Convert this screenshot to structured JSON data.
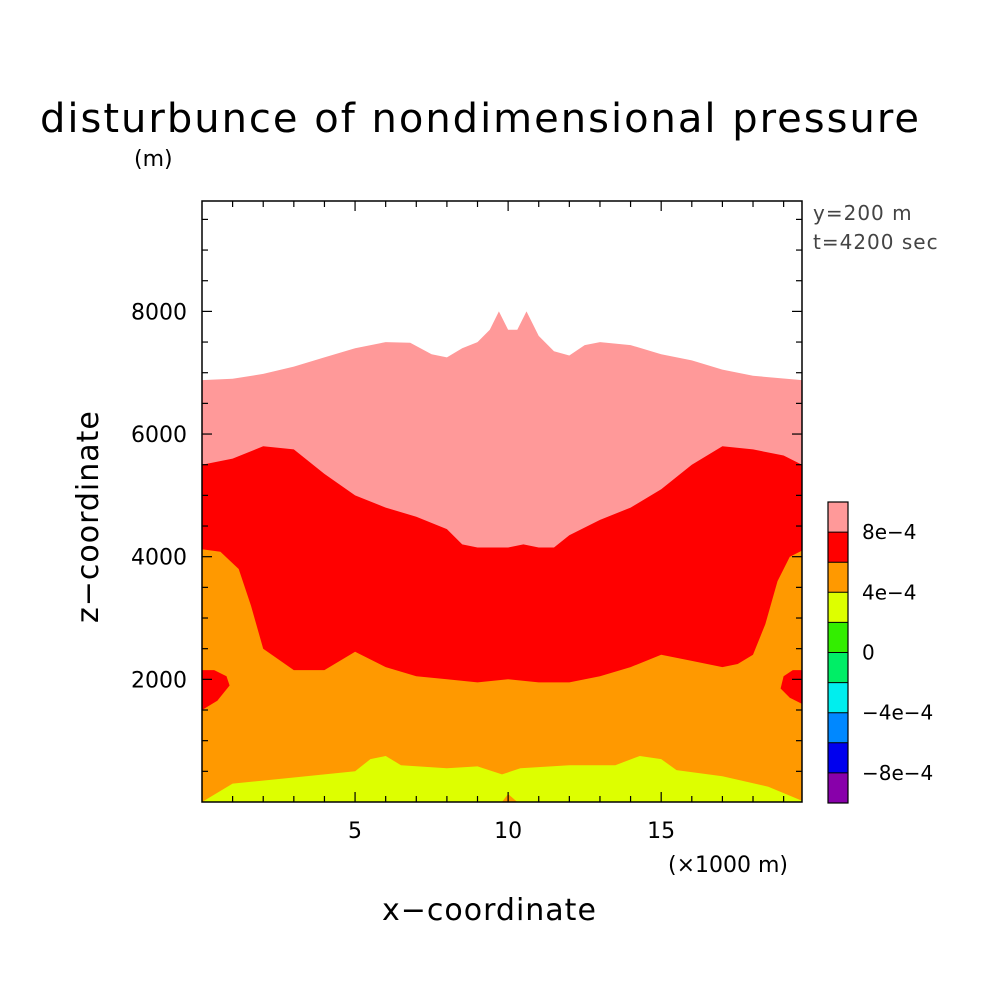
{
  "chart_data": {
    "type": "contour",
    "title": "disturbunce of nondimensional pressure",
    "ylabel": "z−coordinate",
    "yunit": "(m)",
    "xlabel": "x−coordinate",
    "xunit": "(×1000 m)",
    "info": [
      "y=200 m",
      "t=4200 sec"
    ],
    "xlim": [
      0,
      19.6
    ],
    "ylim": [
      0,
      9800
    ],
    "xticks": [
      5,
      10,
      15
    ],
    "xtick_labels": [
      "5",
      "10",
      "15"
    ],
    "yticks": [
      2000,
      4000,
      6000,
      8000
    ],
    "ytick_labels": [
      "2000",
      "4000",
      "6000",
      "8000"
    ],
    "background_color": "#ffffff",
    "levels": [
      {
        "min": 0.0008,
        "max": 0.001,
        "color": "#ff9999"
      },
      {
        "min": 0.0006,
        "max": 0.0008,
        "color": "#ff0000"
      },
      {
        "min": 0.0004,
        "max": 0.0006,
        "color": "#ff9900"
      },
      {
        "min": 0.0002,
        "max": 0.0004,
        "color": "#ddff00"
      },
      {
        "min": 0.0,
        "max": 0.0002,
        "color": "#33ee00"
      },
      {
        "min": -0.0002,
        "max": 0.0,
        "color": "#00ee66"
      },
      {
        "min": -0.0004,
        "max": -0.0002,
        "color": "#00eeee"
      },
      {
        "min": -0.0006,
        "max": -0.0004,
        "color": "#0088ff"
      },
      {
        "min": -0.0008,
        "max": -0.0006,
        "color": "#0000ee"
      },
      {
        "min": -0.001,
        "max": -0.0008,
        "color": "#8800aa"
      }
    ],
    "colorbar_labels": [
      {
        "value": 0.0008,
        "text": "8e−4"
      },
      {
        "value": 0.0004,
        "text": "4e−4"
      },
      {
        "value": 0,
        "text": "0"
      },
      {
        "value": -0.0004,
        "text": "−4e−4"
      },
      {
        "value": -0.0008,
        "text": "−8e−4"
      }
    ],
    "regions": [
      {
        "level_color": "#ff9999",
        "points": [
          [
            0,
            0
          ],
          [
            0,
            6880
          ],
          [
            1,
            6900
          ],
          [
            2,
            6980
          ],
          [
            3,
            7100
          ],
          [
            4,
            7250
          ],
          [
            5,
            7400
          ],
          [
            6,
            7500
          ],
          [
            6.8,
            7490
          ],
          [
            7.5,
            7300
          ],
          [
            8,
            7250
          ],
          [
            8.5,
            7400
          ],
          [
            9,
            7500
          ],
          [
            9.4,
            7700
          ],
          [
            9.7,
            8000
          ],
          [
            10,
            7700
          ],
          [
            10.3,
            7700
          ],
          [
            10.6,
            8000
          ],
          [
            11,
            7600
          ],
          [
            11.5,
            7350
          ],
          [
            12,
            7280
          ],
          [
            12.5,
            7450
          ],
          [
            13,
            7500
          ],
          [
            14,
            7450
          ],
          [
            15,
            7300
          ],
          [
            16,
            7200
          ],
          [
            17,
            7050
          ],
          [
            18,
            6950
          ],
          [
            19.6,
            6880
          ],
          [
            19.6,
            0
          ]
        ]
      },
      {
        "level_color": "#ff0000",
        "points": [
          [
            0,
            0
          ],
          [
            0,
            5500
          ],
          [
            1,
            5600
          ],
          [
            2,
            5800
          ],
          [
            3,
            5750
          ],
          [
            4,
            5350
          ],
          [
            5,
            5000
          ],
          [
            6,
            4800
          ],
          [
            7,
            4650
          ],
          [
            8,
            4450
          ],
          [
            8.5,
            4200
          ],
          [
            9,
            4150
          ],
          [
            10,
            4150
          ],
          [
            10.5,
            4200
          ],
          [
            11,
            4150
          ],
          [
            11.5,
            4150
          ],
          [
            12,
            4350
          ],
          [
            13,
            4600
          ],
          [
            14,
            4800
          ],
          [
            15,
            5100
          ],
          [
            16,
            5500
          ],
          [
            17,
            5800
          ],
          [
            18,
            5750
          ],
          [
            19,
            5650
          ],
          [
            19.6,
            5500
          ],
          [
            19.6,
            0
          ]
        ]
      },
      {
        "level_color": "#ff9900",
        "points": [
          [
            0,
            0
          ],
          [
            0,
            4120
          ],
          [
            0.6,
            4080
          ],
          [
            1.2,
            3800
          ],
          [
            1.6,
            3200
          ],
          [
            2,
            2500
          ],
          [
            3,
            2150
          ],
          [
            4,
            2150
          ],
          [
            5,
            2450
          ],
          [
            6,
            2200
          ],
          [
            7,
            2050
          ],
          [
            8,
            2000
          ],
          [
            9,
            1950
          ],
          [
            10,
            2000
          ],
          [
            11,
            1950
          ],
          [
            12,
            1950
          ],
          [
            13,
            2050
          ],
          [
            14,
            2200
          ],
          [
            15,
            2400
          ],
          [
            16,
            2300
          ],
          [
            17,
            2200
          ],
          [
            17.5,
            2250
          ],
          [
            18,
            2400
          ],
          [
            18.4,
            2900
          ],
          [
            18.8,
            3600
          ],
          [
            19.2,
            4000
          ],
          [
            19.6,
            4100
          ],
          [
            19.6,
            0
          ]
        ]
      },
      {
        "level_color": "#ff0000",
        "points": [
          [
            0,
            1500
          ],
          [
            0.5,
            1650
          ],
          [
            0.9,
            1900
          ],
          [
            0.8,
            2050
          ],
          [
            0.4,
            2150
          ],
          [
            0,
            2150
          ]
        ]
      },
      {
        "level_color": "#ff0000",
        "points": [
          [
            19.6,
            1600
          ],
          [
            19.2,
            1700
          ],
          [
            18.9,
            1850
          ],
          [
            19,
            2050
          ],
          [
            19.3,
            2150
          ],
          [
            19.6,
            2150
          ]
        ]
      },
      {
        "level_color": "#ddff00",
        "points": [
          [
            0,
            0
          ],
          [
            1,
            300
          ],
          [
            3,
            400
          ],
          [
            5,
            500
          ],
          [
            5.5,
            700
          ],
          [
            6,
            750
          ],
          [
            6.5,
            600
          ],
          [
            8,
            550
          ],
          [
            9,
            580
          ],
          [
            9.8,
            450
          ],
          [
            10.4,
            550
          ],
          [
            12,
            600
          ],
          [
            13.5,
            600
          ],
          [
            14.3,
            750
          ],
          [
            15,
            700
          ],
          [
            15.5,
            520
          ],
          [
            17,
            420
          ],
          [
            18.5,
            250
          ],
          [
            19.6,
            20
          ],
          [
            19.6,
            0
          ]
        ]
      },
      {
        "level_color": "#ff9900",
        "points": [
          [
            9.8,
            0
          ],
          [
            10,
            130
          ],
          [
            10.3,
            0
          ]
        ]
      }
    ]
  }
}
